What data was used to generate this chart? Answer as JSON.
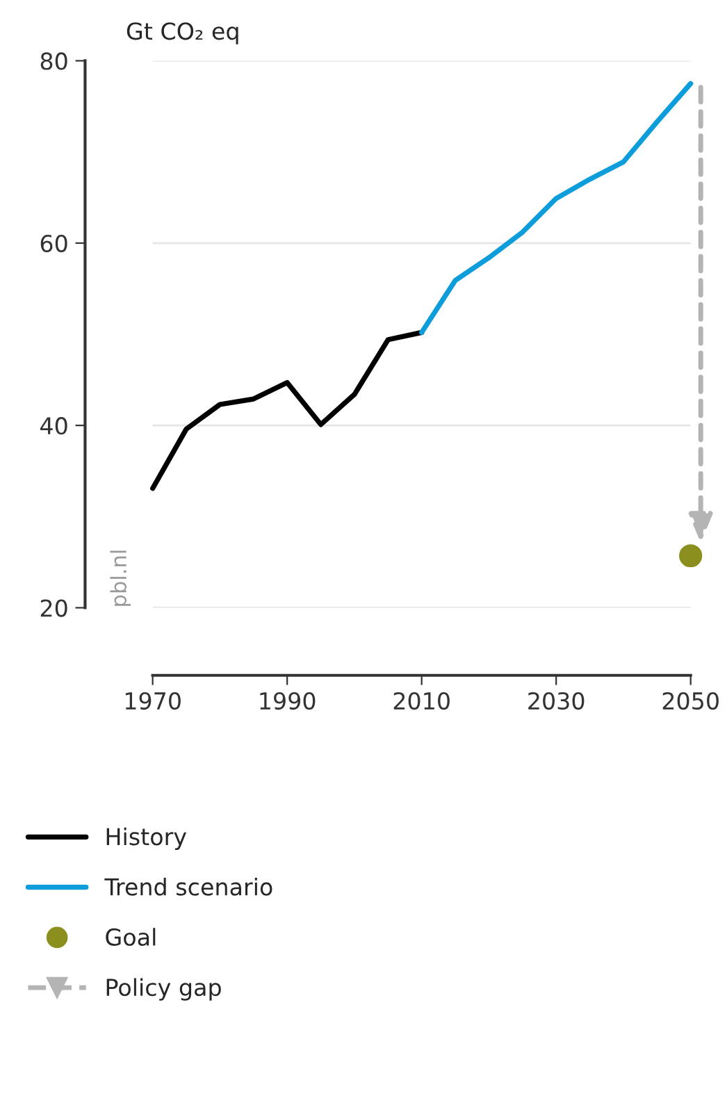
{
  "chart_data": {
    "type": "line",
    "ylabel": "Gt CO₂ eq",
    "series": [
      {
        "name": "History",
        "color": "#000000",
        "x": [
          1970,
          1975,
          1980,
          1985,
          1990,
          1995,
          2000,
          2005,
          2010
        ],
        "values": [
          33.1,
          39.6,
          42.3,
          42.9,
          44.7,
          40.1,
          43.4,
          49.4,
          50.2
        ]
      },
      {
        "name": "Trend scenario",
        "color": "#0d9ddb",
        "x": [
          2010,
          2015,
          2020,
          2025,
          2030,
          2035,
          2040,
          2045,
          2050
        ],
        "values": [
          50.2,
          55.9,
          58.4,
          61.2,
          64.9,
          67.0,
          68.9,
          73.3,
          77.5
        ]
      },
      {
        "name": "Goal",
        "type": "scatter",
        "marker": "circle",
        "color": "#8b8f1e",
        "x": [
          2050
        ],
        "values": [
          25.7
        ]
      }
    ],
    "annotations": [
      "Policy gap",
      "pbl.nl"
    ],
    "xlim": [
      1970,
      2050
    ],
    "xticks": [
      1970,
      1990,
      2010,
      2030,
      2050
    ],
    "ylim": [
      20,
      80
    ],
    "yticks": [
      20,
      40,
      60,
      80
    ],
    "grid": "y",
    "legend": "bottom"
  }
}
